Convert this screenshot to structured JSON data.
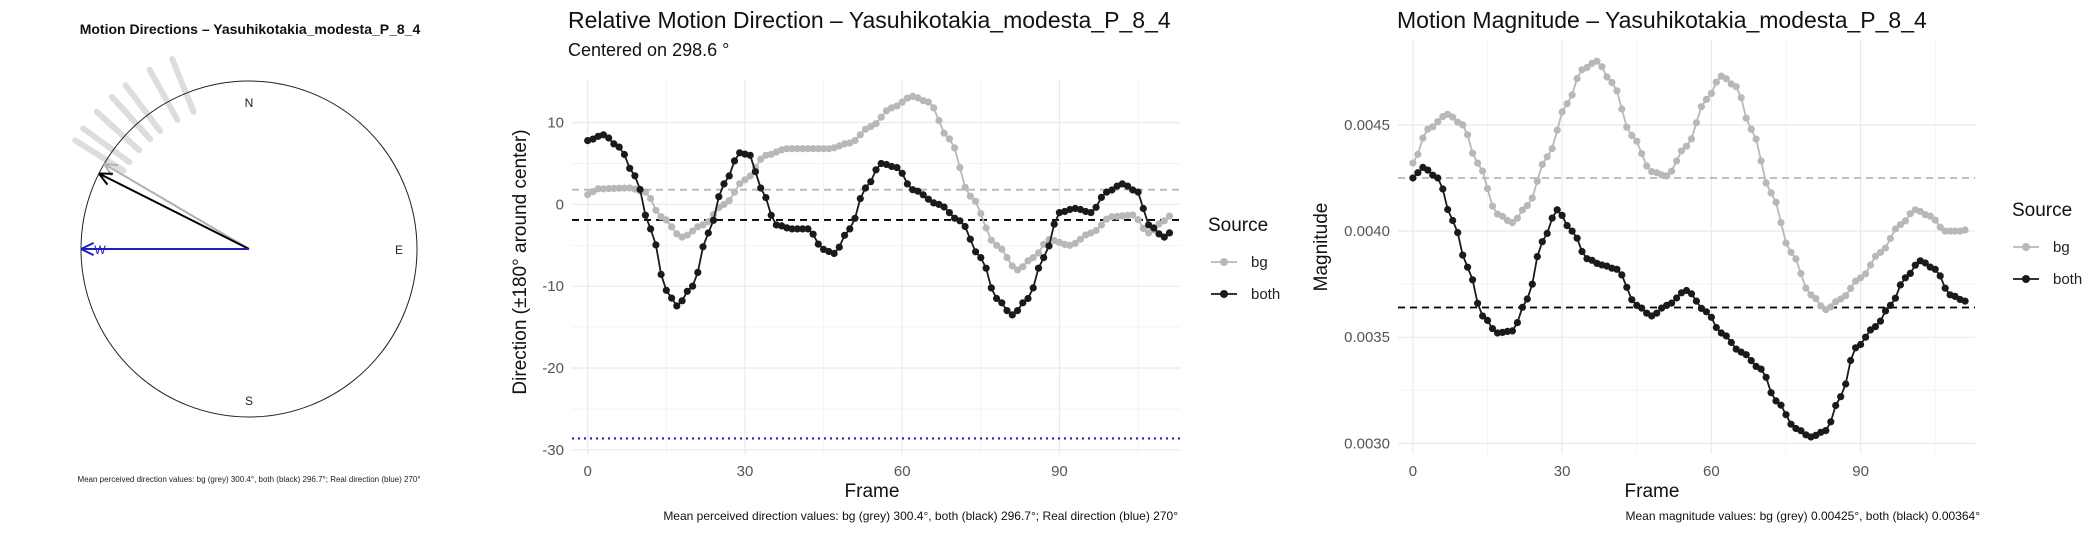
{
  "compass": {
    "title": "Motion Directions – Yasuhikotakia_modesta_P_8_4",
    "labels": {
      "n": "N",
      "e": "E",
      "s": "S",
      "w": "W"
    },
    "caption": "Mean perceived direction values: bg (grey) 300.4°, both (black) 296.7°; Real direction (blue) 270°",
    "arrows": [
      {
        "name": "bg",
        "angle_deg": 300.4,
        "color": "#b0b0b0"
      },
      {
        "name": "both",
        "angle_deg": 296.7,
        "color": "#000000"
      },
      {
        "name": "real",
        "angle_deg": 270,
        "color": "#1f1fbf"
      }
    ],
    "ray_angles_deg": [
      302,
      306,
      312,
      318,
      323,
      331,
      338
    ]
  },
  "direction_chart": {
    "title": "Relative Motion Direction – Yasuhikotakia_modesta_P_8_4",
    "subtitle": "Centered on  298.6 °",
    "legend_title": "Source",
    "caption": "Mean perceived direction values: bg (grey) 300.4°, both (black) 296.7°; Real direction (blue) 270°"
  },
  "magnitude_chart": {
    "title": "Motion Magnitude – Yasuhikotakia_modesta_P_8_4",
    "legend_title": "Source",
    "caption": "Mean magnitude values: bg (grey) 0.00425°, both (black) 0.00364°"
  },
  "colors": {
    "bg": "#b8b8b8",
    "both": "#1a1a1a",
    "real": "#1f1fbf",
    "grid": "#ebebeb"
  },
  "chart_data": [
    {
      "type": "line",
      "title": "Relative Motion Direction – Yasuhikotakia_modesta_P_8_4",
      "subtitle": "Centered on  298.6 °",
      "xlabel": "Frame",
      "ylabel": "Direction (±180° around center)",
      "xlim": [
        -3,
        113
      ],
      "ylim": [
        -30.5,
        15.2
      ],
      "xticks": [
        0,
        30,
        60,
        90
      ],
      "yticks": [
        10,
        0,
        -10,
        -20,
        -30
      ],
      "legend": {
        "title": "Source",
        "position": "right"
      },
      "hlines": [
        {
          "series": "bg",
          "y": 1.8,
          "style": "dashed"
        },
        {
          "series": "both",
          "y": -1.9,
          "style": "dashed"
        },
        {
          "series": "real",
          "y": -28.6,
          "style": "dotted"
        }
      ],
      "series": [
        {
          "name": "bg",
          "knots": [
            [
              0,
              1.2
            ],
            [
              2,
              1.9
            ],
            [
              8,
              2.0
            ],
            [
              11,
              1.5
            ],
            [
              14,
              -1.5
            ],
            [
              18,
              -4.0
            ],
            [
              22,
              -2.5
            ],
            [
              26,
              0.0
            ],
            [
              30,
              3.0
            ],
            [
              34,
              6.0
            ],
            [
              38,
              6.8
            ],
            [
              46,
              6.8
            ],
            [
              50,
              7.5
            ],
            [
              54,
              9.5
            ],
            [
              58,
              11.8
            ],
            [
              62,
              13.2
            ],
            [
              65,
              12.5
            ],
            [
              69,
              8.0
            ],
            [
              73,
              1.0
            ],
            [
              78,
              -5.0
            ],
            [
              82,
              -8.0
            ],
            [
              85,
              -6.5
            ],
            [
              88,
              -4.3
            ],
            [
              92,
              -5.0
            ],
            [
              96,
              -3.5
            ],
            [
              100,
              -1.5
            ],
            [
              104,
              -1.3
            ],
            [
              107,
              -3.5
            ],
            [
              110,
              -2.0
            ],
            [
              113,
              0.2
            ]
          ]
        },
        {
          "name": "both",
          "knots": [
            [
              0,
              7.8
            ],
            [
              3,
              8.5
            ],
            [
              6,
              7.0
            ],
            [
              9,
              3.5
            ],
            [
              12,
              -3.0
            ],
            [
              15,
              -10.5
            ],
            [
              17,
              -12.4
            ],
            [
              20,
              -10.0
            ],
            [
              23,
              -3.5
            ],
            [
              26,
              2.5
            ],
            [
              29,
              6.3
            ],
            [
              31,
              6.0
            ],
            [
              33,
              2.0
            ],
            [
              36,
              -2.5
            ],
            [
              39,
              -3.0
            ],
            [
              42,
              -3.0
            ],
            [
              45,
              -5.5
            ],
            [
              47,
              -6.0
            ],
            [
              50,
              -3.0
            ],
            [
              53,
              2.0
            ],
            [
              56,
              5.0
            ],
            [
              59,
              4.5
            ],
            [
              62,
              1.8
            ],
            [
              67,
              0.0
            ],
            [
              71,
              -2.0
            ],
            [
              75,
              -6.5
            ],
            [
              78,
              -11.5
            ],
            [
              81,
              -13.5
            ],
            [
              84,
              -11.5
            ],
            [
              87,
              -6.5
            ],
            [
              90,
              -1.0
            ],
            [
              93,
              -0.5
            ],
            [
              96,
              -1.0
            ],
            [
              99,
              1.5
            ],
            [
              102,
              2.5
            ],
            [
              105,
              1.5
            ],
            [
              107,
              -2.5
            ],
            [
              110,
              -4.0
            ],
            [
              113,
              -2.0
            ]
          ]
        }
      ]
    },
    {
      "type": "line",
      "title": "Motion Magnitude – Yasuhikotakia_modesta_P_8_4",
      "xlabel": "Frame",
      "ylabel": "Magnitude",
      "xlim": [
        -3,
        113
      ],
      "ylim": [
        0.00295,
        0.0049
      ],
      "xticks": [
        0,
        30,
        60,
        90
      ],
      "yticks": [
        0.0045,
        0.004,
        0.0035,
        0.003
      ],
      "ytick_labels": [
        "0.0045",
        "0.0040",
        "0.0035",
        "0.0030"
      ],
      "legend": {
        "title": "Source",
        "position": "right"
      },
      "hlines": [
        {
          "series": "bg",
          "y": 0.00425,
          "style": "dashed"
        },
        {
          "series": "both",
          "y": 0.00364,
          "style": "dashed"
        }
      ],
      "series": [
        {
          "name": "bg",
          "knots": [
            [
              0,
              0.00432
            ],
            [
              3,
              0.00448
            ],
            [
              7,
              0.00455
            ],
            [
              10,
              0.0045
            ],
            [
              13,
              0.00432
            ],
            [
              17,
              0.00408
            ],
            [
              20,
              0.00404
            ],
            [
              23,
              0.00412
            ],
            [
              27,
              0.00435
            ],
            [
              31,
              0.0046
            ],
            [
              34,
              0.00476
            ],
            [
              37,
              0.0048
            ],
            [
              40,
              0.0047
            ],
            [
              44,
              0.00445
            ],
            [
              48,
              0.00428
            ],
            [
              51,
              0.00426
            ],
            [
              55,
              0.0044
            ],
            [
              59,
              0.00462
            ],
            [
              62,
              0.00473
            ],
            [
              65,
              0.00468
            ],
            [
              68,
              0.00448
            ],
            [
              72,
              0.00418
            ],
            [
              76,
              0.0039
            ],
            [
              80,
              0.0037
            ],
            [
              83,
              0.00363
            ],
            [
              86,
              0.00368
            ],
            [
              90,
              0.00378
            ],
            [
              94,
              0.0039
            ],
            [
              98,
              0.00403
            ],
            [
              101,
              0.0041
            ],
            [
              104,
              0.00407
            ],
            [
              107,
              0.004
            ],
            [
              110,
              0.004
            ],
            [
              113,
              0.00402
            ]
          ]
        },
        {
          "name": "both",
          "knots": [
            [
              0,
              0.00425
            ],
            [
              2,
              0.0043
            ],
            [
              5,
              0.00425
            ],
            [
              8,
              0.00405
            ],
            [
              11,
              0.00383
            ],
            [
              14,
              0.0036
            ],
            [
              17,
              0.00352
            ],
            [
              20,
              0.00353
            ],
            [
              23,
              0.00368
            ],
            [
              26,
              0.00395
            ],
            [
              29,
              0.0041
            ],
            [
              32,
              0.004
            ],
            [
              35,
              0.00387
            ],
            [
              38,
              0.00384
            ],
            [
              41,
              0.00382
            ],
            [
              45,
              0.00365
            ],
            [
              48,
              0.0036
            ],
            [
              51,
              0.00365
            ],
            [
              55,
              0.00372
            ],
            [
              59,
              0.00362
            ],
            [
              62,
              0.00352
            ],
            [
              66,
              0.00343
            ],
            [
              70,
              0.00335
            ],
            [
              73,
              0.0032
            ],
            [
              77,
              0.00307
            ],
            [
              80,
              0.00303
            ],
            [
              83,
              0.00306
            ],
            [
              86,
              0.00322
            ],
            [
              89,
              0.00345
            ],
            [
              93,
              0.00355
            ],
            [
              96,
              0.00365
            ],
            [
              99,
              0.00378
            ],
            [
              102,
              0.00386
            ],
            [
              105,
              0.00382
            ],
            [
              108,
              0.0037
            ],
            [
              111,
              0.00367
            ],
            [
              113,
              0.00367
            ]
          ]
        }
      ]
    }
  ]
}
